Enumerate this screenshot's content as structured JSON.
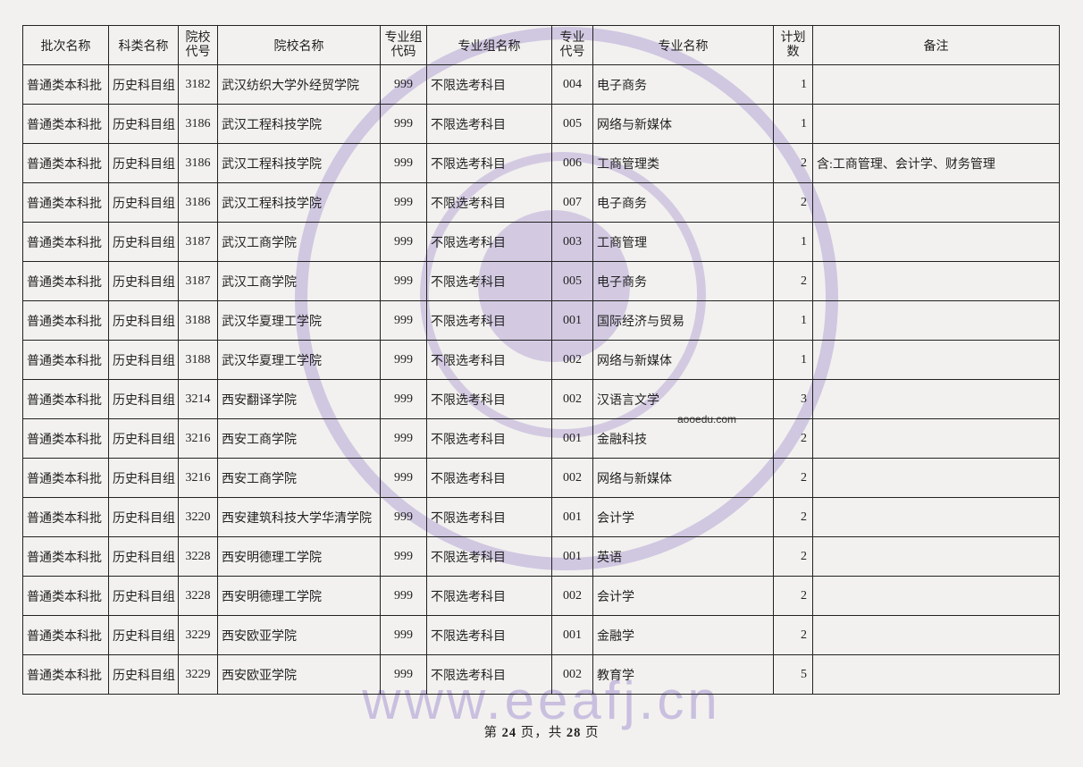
{
  "headers": {
    "batch": "批次名称",
    "subject": "科类名称",
    "school_code": "院校\n代号",
    "school_name": "院校名称",
    "group_code": "专业组\n代码",
    "group_name": "专业组名称",
    "major_code": "专业\n代号",
    "major_name": "专业名称",
    "plan": "计划\n数",
    "note": "备注"
  },
  "rows": [
    {
      "batch": "普通类本科批",
      "subject": "历史科目组",
      "school_code": "3182",
      "school_name": "武汉纺织大学外经贸学院",
      "group_code": "999",
      "group_name": "不限选考科目",
      "major_code": "004",
      "major_name": "电子商务",
      "plan": "1",
      "note": ""
    },
    {
      "batch": "普通类本科批",
      "subject": "历史科目组",
      "school_code": "3186",
      "school_name": "武汉工程科技学院",
      "group_code": "999",
      "group_name": "不限选考科目",
      "major_code": "005",
      "major_name": "网络与新媒体",
      "plan": "1",
      "note": ""
    },
    {
      "batch": "普通类本科批",
      "subject": "历史科目组",
      "school_code": "3186",
      "school_name": "武汉工程科技学院",
      "group_code": "999",
      "group_name": "不限选考科目",
      "major_code": "006",
      "major_name": "工商管理类",
      "plan": "2",
      "note": "含:工商管理、会计学、财务管理"
    },
    {
      "batch": "普通类本科批",
      "subject": "历史科目组",
      "school_code": "3186",
      "school_name": "武汉工程科技学院",
      "group_code": "999",
      "group_name": "不限选考科目",
      "major_code": "007",
      "major_name": "电子商务",
      "plan": "2",
      "note": ""
    },
    {
      "batch": "普通类本科批",
      "subject": "历史科目组",
      "school_code": "3187",
      "school_name": "武汉工商学院",
      "group_code": "999",
      "group_name": "不限选考科目",
      "major_code": "003",
      "major_name": "工商管理",
      "plan": "1",
      "note": ""
    },
    {
      "batch": "普通类本科批",
      "subject": "历史科目组",
      "school_code": "3187",
      "school_name": "武汉工商学院",
      "group_code": "999",
      "group_name": "不限选考科目",
      "major_code": "005",
      "major_name": "电子商务",
      "plan": "2",
      "note": ""
    },
    {
      "batch": "普通类本科批",
      "subject": "历史科目组",
      "school_code": "3188",
      "school_name": "武汉华夏理工学院",
      "group_code": "999",
      "group_name": "不限选考科目",
      "major_code": "001",
      "major_name": "国际经济与贸易",
      "plan": "1",
      "note": ""
    },
    {
      "batch": "普通类本科批",
      "subject": "历史科目组",
      "school_code": "3188",
      "school_name": "武汉华夏理工学院",
      "group_code": "999",
      "group_name": "不限选考科目",
      "major_code": "002",
      "major_name": "网络与新媒体",
      "plan": "1",
      "note": ""
    },
    {
      "batch": "普通类本科批",
      "subject": "历史科目组",
      "school_code": "3214",
      "school_name": "西安翻译学院",
      "group_code": "999",
      "group_name": "不限选考科目",
      "major_code": "002",
      "major_name": "汉语言文学",
      "plan": "3",
      "note": ""
    },
    {
      "batch": "普通类本科批",
      "subject": "历史科目组",
      "school_code": "3216",
      "school_name": "西安工商学院",
      "group_code": "999",
      "group_name": "不限选考科目",
      "major_code": "001",
      "major_name": "金融科技",
      "plan": "2",
      "note": ""
    },
    {
      "batch": "普通类本科批",
      "subject": "历史科目组",
      "school_code": "3216",
      "school_name": "西安工商学院",
      "group_code": "999",
      "group_name": "不限选考科目",
      "major_code": "002",
      "major_name": "网络与新媒体",
      "plan": "2",
      "note": ""
    },
    {
      "batch": "普通类本科批",
      "subject": "历史科目组",
      "school_code": "3220",
      "school_name": "西安建筑科技大学华清学院",
      "group_code": "999",
      "group_name": "不限选考科目",
      "major_code": "001",
      "major_name": "会计学",
      "plan": "2",
      "note": ""
    },
    {
      "batch": "普通类本科批",
      "subject": "历史科目组",
      "school_code": "3228",
      "school_name": "西安明德理工学院",
      "group_code": "999",
      "group_name": "不限选考科目",
      "major_code": "001",
      "major_name": "英语",
      "plan": "2",
      "note": ""
    },
    {
      "batch": "普通类本科批",
      "subject": "历史科目组",
      "school_code": "3228",
      "school_name": "西安明德理工学院",
      "group_code": "999",
      "group_name": "不限选考科目",
      "major_code": "002",
      "major_name": "会计学",
      "plan": "2",
      "note": ""
    },
    {
      "batch": "普通类本科批",
      "subject": "历史科目组",
      "school_code": "3229",
      "school_name": "西安欧亚学院",
      "group_code": "999",
      "group_name": "不限选考科目",
      "major_code": "001",
      "major_name": "金融学",
      "plan": "2",
      "note": ""
    },
    {
      "batch": "普通类本科批",
      "subject": "历史科目组",
      "school_code": "3229",
      "school_name": "西安欧亚学院",
      "group_code": "999",
      "group_name": "不限选考科目",
      "major_code": "002",
      "major_name": "教育学",
      "plan": "5",
      "note": ""
    }
  ],
  "footer": {
    "prefix": "第 ",
    "page": "24",
    "mid": " 页，共 ",
    "total": "28",
    "suffix": " 页"
  },
  "watermarks": {
    "url": "www.eeafj.cn",
    "small": "aooedu.com"
  }
}
